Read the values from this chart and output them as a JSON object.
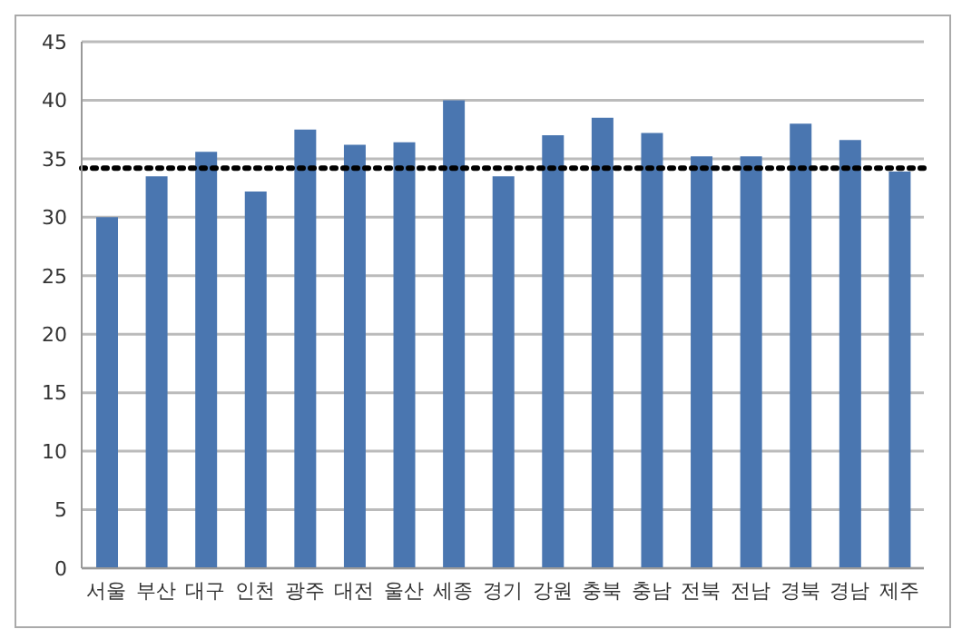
{
  "chart_data": {
    "type": "bar",
    "categories": [
      "서울",
      "부산",
      "대구",
      "인천",
      "광주",
      "대전",
      "울산",
      "세종",
      "경기",
      "강원",
      "충북",
      "충남",
      "전북",
      "전남",
      "경북",
      "경남",
      "제주"
    ],
    "values": [
      30.0,
      33.5,
      35.6,
      32.2,
      37.5,
      36.2,
      36.4,
      40.0,
      33.5,
      37.0,
      38.5,
      37.2,
      35.2,
      35.2,
      38.0,
      36.6,
      33.9
    ],
    "color": "#4a76b0",
    "ylim": [
      0,
      45
    ],
    "yticks": [
      0,
      5,
      10,
      15,
      20,
      25,
      30,
      35,
      40,
      45
    ],
    "grid": "y",
    "ref_lines": [
      {
        "axis": "y",
        "value": 34.2,
        "color": "#000000",
        "line_style": "dotted"
      }
    ]
  }
}
